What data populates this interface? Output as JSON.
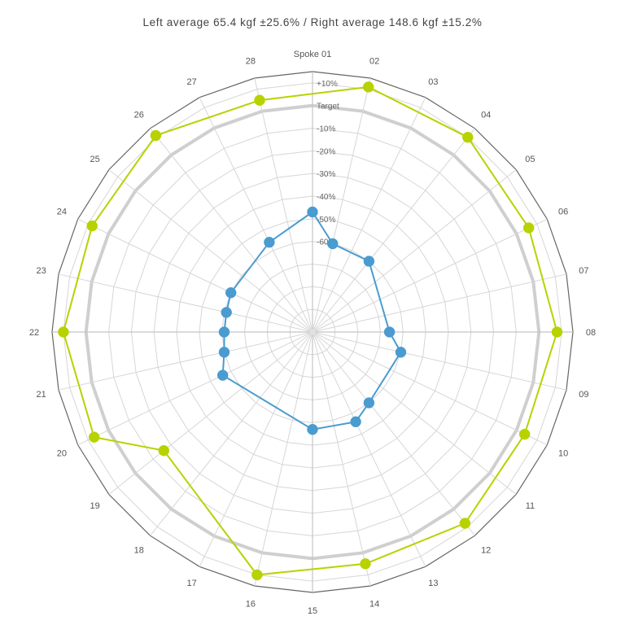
{
  "chart_data": {
    "type": "radar",
    "title": "Left average 65.4 kgf ±25.6% / Right average 148.6 kgf ±15.2%",
    "spokes": [
      "Spoke 01",
      "02",
      "03",
      "04",
      "05",
      "06",
      "07",
      "08",
      "09",
      "10",
      "11",
      "12",
      "13",
      "14",
      "15",
      "16",
      "17",
      "18",
      "19",
      "20",
      "21",
      "22",
      "23",
      "24",
      "25",
      "26",
      "27",
      "28"
    ],
    "scale_labels": [
      "+10%",
      "Target",
      "-10%",
      "-20%",
      "-30%",
      "-40%",
      "-50%",
      "-60%"
    ],
    "scale_values": [
      10,
      0,
      -10,
      -20,
      -30,
      -40,
      -50,
      -60
    ],
    "range": [
      -100,
      15
    ],
    "target_value": 0,
    "series": [
      {
        "color": "#4a9bd0",
        "values": [
          -47,
          -60,
          null,
          -60,
          null,
          null,
          null,
          -66,
          -60,
          null,
          null,
          -60,
          -56,
          null,
          -57,
          null,
          null,
          null,
          null,
          -56,
          -60,
          -61,
          -61,
          -60,
          null,
          null,
          -56,
          null
        ]
      },
      {
        "color": "#b8d200",
        "values": [
          null,
          11,
          null,
          10,
          null,
          6,
          null,
          8,
          null,
          4,
          null,
          8,
          null,
          5,
          null,
          10,
          null,
          null,
          -16,
          7,
          null,
          10,
          null,
          8,
          null,
          11,
          null,
          5
        ]
      }
    ],
    "colors": {
      "grid": "#d6d6d6",
      "outer": "#666666",
      "target_ring": "#cfcfcf",
      "axis_text": "#555555"
    }
  }
}
